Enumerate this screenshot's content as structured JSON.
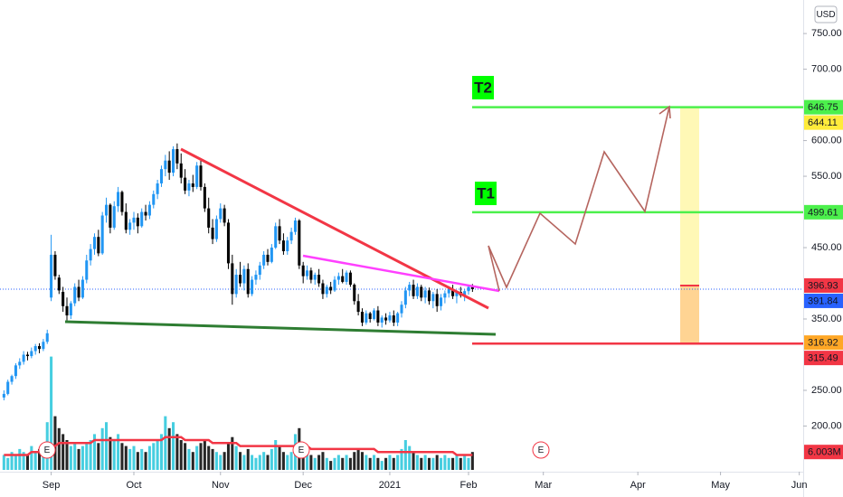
{
  "chart_data": {
    "type": "candlestick",
    "currency": "USD",
    "x": [
      0,
      1,
      2,
      3,
      4,
      5,
      6,
      7,
      8,
      9,
      10,
      11,
      12,
      13,
      14,
      15,
      16,
      17,
      18,
      19,
      20,
      21,
      22,
      23,
      24,
      25,
      26,
      27,
      28,
      29,
      30,
      31,
      32,
      33,
      34,
      35,
      36,
      37,
      38,
      39,
      40,
      41,
      42,
      43,
      44,
      45,
      46,
      47,
      48,
      49,
      50,
      51,
      52,
      53,
      54,
      55,
      56,
      57,
      58,
      59,
      60,
      61,
      62,
      63,
      64,
      65,
      66,
      67,
      68,
      69,
      70,
      71,
      72,
      73,
      74,
      75,
      76,
      77,
      78,
      79,
      80,
      81,
      82,
      83,
      84,
      85,
      86,
      87,
      88,
      89,
      90,
      91,
      92,
      93,
      94,
      95,
      96,
      97,
      98,
      99,
      100,
      101,
      102,
      103,
      104,
      105,
      106,
      107,
      108,
      109,
      110,
      111,
      112,
      113,
      114,
      115,
      116,
      117,
      118,
      119
    ],
    "ohlc": [
      [
        240,
        250,
        236,
        245
      ],
      [
        245,
        265,
        243,
        262
      ],
      [
        262,
        272,
        258,
        270
      ],
      [
        270,
        288,
        266,
        285
      ],
      [
        285,
        295,
        280,
        290
      ],
      [
        290,
        305,
        286,
        300
      ],
      [
        300,
        304,
        292,
        298
      ],
      [
        298,
        310,
        295,
        305
      ],
      [
        305,
        315,
        300,
        312
      ],
      [
        312,
        316,
        302,
        308
      ],
      [
        308,
        322,
        305,
        318
      ],
      [
        318,
        335,
        315,
        330
      ],
      [
        380,
        468,
        375,
        440
      ],
      [
        440,
        445,
        405,
        410
      ],
      [
        408,
        412,
        385,
        390
      ],
      [
        388,
        395,
        360,
        368
      ],
      [
        368,
        380,
        348,
        355
      ],
      [
        355,
        375,
        350,
        372
      ],
      [
        372,
        400,
        368,
        395
      ],
      [
        395,
        405,
        375,
        380
      ],
      [
        380,
        410,
        378,
        405
      ],
      [
        405,
        440,
        400,
        432
      ],
      [
        432,
        455,
        425,
        448
      ],
      [
        448,
        470,
        440,
        465
      ],
      [
        465,
        475,
        438,
        442
      ],
      [
        442,
        500,
        440,
        495
      ],
      [
        495,
        520,
        485,
        510
      ],
      [
        510,
        512,
        470,
        478
      ],
      [
        478,
        515,
        475,
        508
      ],
      [
        508,
        535,
        500,
        528
      ],
      [
        528,
        530,
        495,
        500
      ],
      [
        500,
        512,
        470,
        475
      ],
      [
        475,
        490,
        468,
        485
      ],
      [
        485,
        500,
        475,
        492
      ],
      [
        492,
        498,
        470,
        480
      ],
      [
        480,
        505,
        478,
        500
      ],
      [
        500,
        510,
        488,
        495
      ],
      [
        495,
        515,
        490,
        510
      ],
      [
        510,
        530,
        505,
        525
      ],
      [
        525,
        545,
        518,
        540
      ],
      [
        540,
        565,
        535,
        560
      ],
      [
        560,
        580,
        550,
        572
      ],
      [
        572,
        585,
        545,
        555
      ],
      [
        555,
        592,
        550,
        588
      ],
      [
        588,
        596,
        560,
        568
      ],
      [
        568,
        582,
        540,
        548
      ],
      [
        548,
        560,
        525,
        530
      ],
      [
        530,
        545,
        522,
        540
      ],
      [
        540,
        552,
        528,
        535
      ],
      [
        535,
        570,
        532,
        565
      ],
      [
        565,
        572,
        530,
        535
      ],
      [
        535,
        540,
        500,
        505
      ],
      [
        505,
        520,
        470,
        478
      ],
      [
        478,
        490,
        455,
        462
      ],
      [
        462,
        495,
        458,
        490
      ],
      [
        490,
        512,
        485,
        505
      ],
      [
        505,
        510,
        480,
        485
      ],
      [
        485,
        490,
        420,
        428
      ],
      [
        428,
        440,
        370,
        385
      ],
      [
        385,
        420,
        380,
        412
      ],
      [
        412,
        430,
        395,
        400
      ],
      [
        400,
        425,
        390,
        420
      ],
      [
        420,
        428,
        380,
        385
      ],
      [
        385,
        410,
        382,
        405
      ],
      [
        405,
        418,
        398,
        412
      ],
      [
        412,
        430,
        405,
        425
      ],
      [
        425,
        445,
        420,
        440
      ],
      [
        440,
        448,
        425,
        430
      ],
      [
        430,
        455,
        428,
        450
      ],
      [
        450,
        485,
        448,
        480
      ],
      [
        480,
        490,
        455,
        460
      ],
      [
        460,
        470,
        440,
        445
      ],
      [
        445,
        465,
        440,
        460
      ],
      [
        460,
        478,
        455,
        472
      ],
      [
        472,
        492,
        468,
        488
      ],
      [
        488,
        490,
        420,
        425
      ],
      [
        425,
        430,
        400,
        410
      ],
      [
        410,
        425,
        405,
        418
      ],
      [
        418,
        422,
        400,
        405
      ],
      [
        405,
        415,
        398,
        412
      ],
      [
        412,
        420,
        395,
        400
      ],
      [
        400,
        405,
        378,
        385
      ],
      [
        385,
        398,
        380,
        395
      ],
      [
        395,
        402,
        385,
        390
      ],
      [
        390,
        410,
        388,
        405
      ],
      [
        405,
        415,
        398,
        410
      ],
      [
        410,
        420,
        400,
        402
      ],
      [
        402,
        418,
        398,
        415
      ],
      [
        415,
        418,
        395,
        398
      ],
      [
        398,
        400,
        370,
        375
      ],
      [
        375,
        385,
        355,
        360
      ],
      [
        360,
        365,
        340,
        345
      ],
      [
        345,
        362,
        342,
        358
      ],
      [
        358,
        360,
        345,
        350
      ],
      [
        350,
        365,
        348,
        362
      ],
      [
        362,
        368,
        340,
        345
      ],
      [
        345,
        355,
        338,
        352
      ],
      [
        352,
        358,
        342,
        348
      ],
      [
        348,
        360,
        345,
        355
      ],
      [
        355,
        362,
        340,
        345
      ],
      [
        345,
        360,
        340,
        358
      ],
      [
        358,
        375,
        352,
        370
      ],
      [
        370,
        395,
        365,
        390
      ],
      [
        390,
        402,
        382,
        398
      ],
      [
        398,
        405,
        378,
        382
      ],
      [
        382,
        400,
        378,
        395
      ],
      [
        395,
        398,
        375,
        380
      ],
      [
        380,
        395,
        372,
        390
      ],
      [
        390,
        394,
        370,
        375
      ],
      [
        375,
        388,
        365,
        385
      ],
      [
        385,
        392,
        360,
        368
      ],
      [
        368,
        385,
        362,
        380
      ],
      [
        380,
        390,
        372,
        386
      ],
      [
        386,
        396,
        380,
        392
      ],
      [
        392,
        398,
        378,
        382
      ],
      [
        382,
        390,
        372,
        388
      ],
      [
        388,
        395,
        380,
        383
      ],
      [
        383,
        392,
        375,
        389
      ],
      [
        389,
        398,
        384,
        395
      ],
      [
        395,
        399,
        388,
        391.84
      ]
    ],
    "volume": [
      5,
      4,
      6,
      5,
      7,
      6,
      5,
      8,
      6,
      7,
      9,
      16,
      38,
      18,
      14,
      12,
      10,
      8,
      9,
      7,
      8,
      9,
      10,
      12,
      9,
      14,
      16,
      11,
      10,
      12,
      9,
      8,
      7,
      8,
      6,
      7,
      6,
      8,
      9,
      10,
      12,
      18,
      14,
      16,
      12,
      10,
      9,
      7,
      6,
      8,
      9,
      10,
      8,
      7,
      6,
      5,
      6,
      9,
      11,
      8,
      6,
      5,
      7,
      5,
      4,
      5,
      6,
      5,
      7,
      10,
      8,
      6,
      5,
      6,
      12,
      14,
      9,
      6,
      5,
      4,
      5,
      6,
      4,
      3,
      4,
      5,
      4,
      5,
      4,
      6,
      7,
      6,
      5,
      4,
      5,
      4,
      3,
      4,
      5,
      4,
      5,
      7,
      10,
      8,
      6,
      5,
      4,
      5,
      4,
      4,
      5,
      4,
      5,
      4,
      4,
      5,
      4,
      5,
      4,
      6.003
    ],
    "volume_ma": [
      5,
      5,
      5,
      5,
      5,
      5,
      5,
      6,
      6,
      6,
      6,
      7,
      8,
      8,
      9,
      9,
      9,
      9,
      9,
      9,
      9,
      9,
      9,
      10,
      10,
      10,
      10,
      10,
      10,
      10,
      10,
      10,
      10,
      10,
      10,
      10,
      10,
      10,
      10,
      10,
      10,
      11,
      11,
      11,
      11,
      11,
      10,
      10,
      10,
      10,
      10,
      10,
      10,
      9,
      9,
      9,
      9,
      9,
      9,
      9,
      8,
      8,
      8,
      8,
      8,
      8,
      8,
      8,
      8,
      8,
      8,
      8,
      8,
      8,
      8,
      8,
      8,
      8,
      7,
      7,
      7,
      7,
      7,
      7,
      7,
      7,
      7,
      7,
      7,
      7,
      7,
      7,
      7,
      7,
      7,
      6,
      6,
      6,
      6,
      6,
      6,
      6,
      6,
      6,
      6,
      6,
      6,
      6,
      6,
      6,
      6,
      6,
      6,
      6,
      6,
      5,
      5,
      5,
      5,
      5
    ],
    "xlim": [
      -1,
      203
    ],
    "xticks": [
      {
        "value": 12,
        "label": "Sep"
      },
      {
        "value": 33,
        "label": "Oct"
      },
      {
        "value": 55,
        "label": "Nov"
      },
      {
        "value": 76,
        "label": "Dec"
      },
      {
        "value": 98,
        "label": "2021"
      },
      {
        "value": 118,
        "label": "Feb"
      },
      {
        "value": 137,
        "label": "Mar"
      },
      {
        "value": 161,
        "label": "Apr"
      },
      {
        "value": 182,
        "label": "May"
      },
      {
        "value": 202,
        "label": "Jun"
      }
    ],
    "ylim": [
      136,
      797
    ],
    "yticks": [
      {
        "value": 750,
        "label": "750.00"
      },
      {
        "value": 700,
        "label": "700.00"
      },
      {
        "value": 600,
        "label": "600.00"
      },
      {
        "value": 550,
        "label": "550.00"
      },
      {
        "value": 450,
        "label": "450.00"
      },
      {
        "value": 350,
        "label": "350.00"
      },
      {
        "value": 250,
        "label": "250.00"
      },
      {
        "value": 200,
        "label": "200.00"
      }
    ],
    "colors": {
      "up": "#2196f3",
      "down": "#000000",
      "volume_up": "#26c6da",
      "volume_down": "#000000",
      "volume_ma": "#f23645",
      "last_price": "#2962ff"
    },
    "price_badges": [
      {
        "value": 646.75,
        "color": "#4cf04c",
        "text_color": "#000000"
      },
      {
        "value": 644.11,
        "color": "#ffeb3b",
        "text_color": "#000000"
      },
      {
        "value": 499.61,
        "color": "#4cf04c",
        "text_color": "#000000"
      },
      {
        "value": 396.93,
        "color": "#f23645",
        "text_color": "#ffffff"
      },
      {
        "value": 391.84,
        "color": "#2962ff",
        "text_color": "#ffffff"
      },
      {
        "value": 316.92,
        "color": "#ffa726",
        "text_color": "#000000"
      },
      {
        "value": 315.49,
        "color": "#f23645",
        "text_color": "#ffffff"
      }
    ],
    "volume_badge": {
      "value": 6.003,
      "label": "6.003M",
      "color": "#f23645"
    },
    "annotations": [
      "T2",
      "T1"
    ],
    "events": [
      "E",
      "E",
      "E"
    ]
  }
}
